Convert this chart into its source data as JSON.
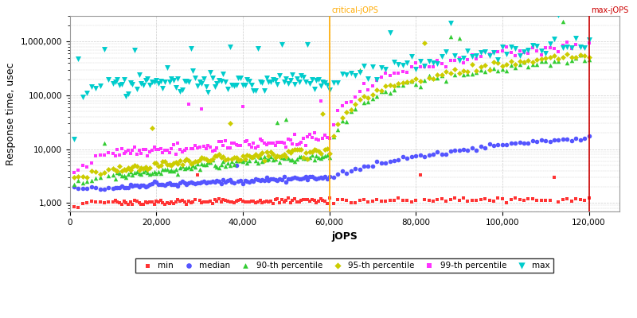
{
  "title": "",
  "xlabel": "jOPS",
  "ylabel": "Response time, usec",
  "critical_jops": 60000,
  "max_jops": 120000,
  "xlim": [
    0,
    127000
  ],
  "ylim_bottom": 700,
  "ylim_top": 3000000,
  "background_color": "#ffffff",
  "grid_color": "#cccccc",
  "series": {
    "min": {
      "color": "#ff3333",
      "marker": "s",
      "ms": 3.0,
      "label": "min"
    },
    "median": {
      "color": "#5555ff",
      "marker": "o",
      "ms": 4.0,
      "label": "median"
    },
    "p90": {
      "color": "#33cc33",
      "marker": "^",
      "ms": 4.0,
      "label": "90-th percentile"
    },
    "p95": {
      "color": "#cccc00",
      "marker": "D",
      "ms": 3.5,
      "label": "95-th percentile"
    },
    "p99": {
      "color": "#ff33ff",
      "marker": "s",
      "ms": 3.5,
      "label": "99-th percentile"
    },
    "max": {
      "color": "#00cccc",
      "marker": "v",
      "ms": 5.0,
      "label": "max"
    }
  },
  "critical_line_color": "#ffaa00",
  "max_line_color": "#cc0000",
  "label_fontsize": 7,
  "legend_fontsize": 7.5,
  "axis_label_fontsize": 9,
  "tick_fontsize": 7.5
}
